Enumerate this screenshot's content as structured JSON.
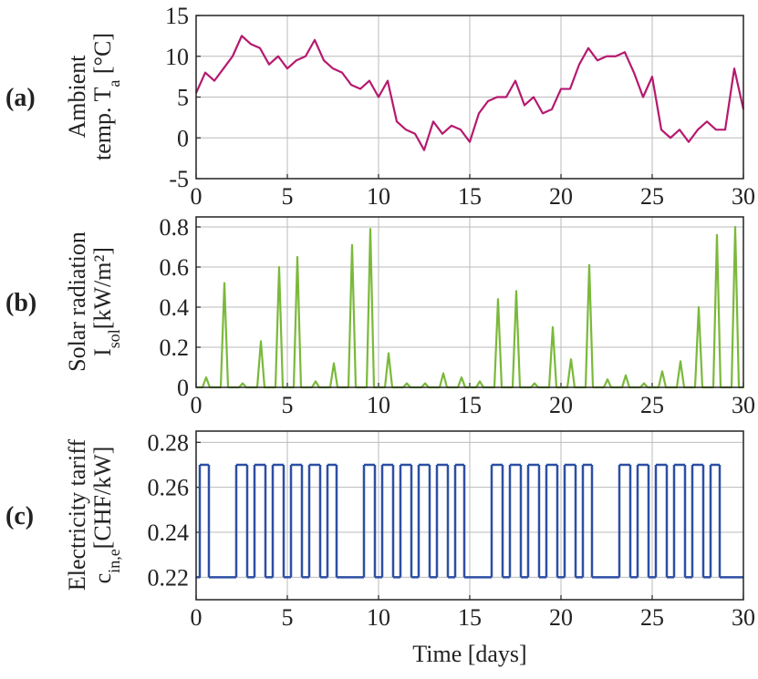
{
  "chart_data": [
    {
      "type": "line",
      "panel_label": "(a)",
      "ylabel": [
        [
          "Ambient"
        ],
        [
          "temp. T",
          "a",
          " [°C]"
        ]
      ],
      "x": [
        0,
        0.5,
        1,
        1.5,
        2,
        2.5,
        3,
        3.5,
        4,
        4.5,
        5,
        5.5,
        6,
        6.5,
        7,
        7.5,
        8,
        8.5,
        9,
        9.5,
        10,
        10.5,
        11,
        11.5,
        12,
        12.5,
        13,
        13.5,
        14,
        14.5,
        15,
        15.5,
        16,
        16.5,
        17,
        17.5,
        18,
        18.5,
        19,
        19.5,
        20,
        20.5,
        21,
        21.5,
        22,
        22.5,
        23,
        23.5,
        24,
        24.5,
        25,
        25.5,
        26,
        26.5,
        27,
        27.5,
        28,
        28.5,
        29,
        29.5,
        30
      ],
      "series": [
        {
          "color": "#b5196f",
          "values": [
            5.5,
            8,
            7,
            8.5,
            10,
            12.5,
            11.5,
            11,
            9,
            10,
            8.5,
            9.5,
            10,
            12,
            9.5,
            8.5,
            8,
            6.5,
            6,
            7,
            5,
            7,
            2,
            1,
            0.5,
            -1.5,
            2,
            0.5,
            1.5,
            1,
            -0.5,
            3,
            4.5,
            5,
            5,
            7,
            4,
            5,
            3,
            3.5,
            6,
            6,
            9,
            11,
            9.5,
            10,
            10,
            10.5,
            8,
            5,
            7.5,
            1,
            0,
            1,
            -0.5,
            1,
            2,
            1,
            1,
            8.5,
            3.5
          ]
        }
      ],
      "xlim": [
        0,
        30
      ],
      "xticks": [
        0,
        5,
        10,
        15,
        20,
        25,
        30
      ],
      "ylim": [
        -5,
        15
      ],
      "yticks": [
        -5,
        0,
        5,
        10,
        15
      ],
      "grid": true
    },
    {
      "type": "line",
      "panel_label": "(b)",
      "ylabel": [
        [
          "Solar radiation"
        ],
        [
          "I",
          "sol",
          "[kW/m²]"
        ]
      ],
      "x": [
        0,
        0.35,
        0.55,
        0.75,
        1.35,
        1.55,
        1.75,
        2.35,
        2.55,
        2.75,
        3.35,
        3.55,
        3.75,
        4.35,
        4.55,
        4.75,
        5.35,
        5.55,
        5.75,
        6.35,
        6.55,
        6.75,
        7.35,
        7.55,
        7.75,
        8.35,
        8.55,
        8.75,
        9.35,
        9.55,
        9.75,
        10.35,
        10.55,
        10.75,
        11.35,
        11.55,
        11.75,
        12.35,
        12.55,
        12.75,
        13.35,
        13.55,
        13.75,
        14.35,
        14.55,
        14.75,
        15.35,
        15.55,
        15.75,
        16.35,
        16.55,
        16.75,
        17.35,
        17.55,
        17.75,
        18.35,
        18.55,
        18.75,
        19.35,
        19.55,
        19.75,
        20.35,
        20.55,
        20.75,
        21.35,
        21.55,
        21.75,
        22.35,
        22.55,
        22.75,
        23.35,
        23.55,
        23.75,
        24.35,
        24.55,
        24.75,
        25.35,
        25.55,
        25.75,
        26.35,
        26.55,
        26.75,
        27.35,
        27.55,
        27.75,
        28.35,
        28.55,
        28.75,
        29.35,
        29.55,
        29.75,
        30
      ],
      "series": [
        {
          "color": "#7ab93a",
          "values": [
            0,
            0,
            0.05,
            0,
            0,
            0.52,
            0,
            0,
            0.02,
            0,
            0,
            0.23,
            0,
            0,
            0.6,
            0,
            0,
            0.65,
            0,
            0,
            0.03,
            0,
            0,
            0.12,
            0,
            0,
            0.71,
            0,
            0,
            0.79,
            0,
            0,
            0.17,
            0,
            0,
            0.02,
            0,
            0,
            0.02,
            0,
            0,
            0.07,
            0,
            0,
            0.05,
            0,
            0,
            0.03,
            0,
            0,
            0.44,
            0,
            0,
            0.48,
            0,
            0,
            0.02,
            0,
            0,
            0.3,
            0,
            0,
            0.14,
            0,
            0,
            0.61,
            0,
            0,
            0.04,
            0,
            0,
            0.06,
            0,
            0,
            0.02,
            0,
            0,
            0.08,
            0,
            0,
            0.13,
            0,
            0,
            0.4,
            0,
            0,
            0.76,
            0,
            0,
            0.8,
            0,
            0
          ]
        }
      ],
      "xlim": [
        0,
        30
      ],
      "xticks": [
        0,
        5,
        10,
        15,
        20,
        25,
        30
      ],
      "ylim": [
        0,
        0.85
      ],
      "yticks": [
        0,
        0.2,
        0.4,
        0.6,
        0.8
      ],
      "grid": true
    },
    {
      "type": "step",
      "panel_label": "(c)",
      "ylabel": [
        [
          "Electricity tariff"
        ],
        [
          "c",
          "in,e",
          "[CHF/kW]"
        ]
      ],
      "xlabel": "Time [days]",
      "x": [
        0,
        0.2,
        0.7,
        2.2,
        2.8,
        3.2,
        3.8,
        4.2,
        4.8,
        5.2,
        5.8,
        6.2,
        6.8,
        7.2,
        7.7,
        9.2,
        9.8,
        10.2,
        10.8,
        11.2,
        11.8,
        12.2,
        12.8,
        13.2,
        13.8,
        14.2,
        14.7,
        16.2,
        16.8,
        17.2,
        17.8,
        18.2,
        18.8,
        19.2,
        19.8,
        20.2,
        20.8,
        21.2,
        21.7,
        23.2,
        23.8,
        24.2,
        24.8,
        25.2,
        25.8,
        26.2,
        26.8,
        27.2,
        27.8,
        28.2,
        28.7
      ],
      "series": [
        {
          "color": "#2d4fa3",
          "values": [
            0.22,
            0.27,
            0.22,
            0.27,
            0.22,
            0.27,
            0.22,
            0.27,
            0.22,
            0.27,
            0.22,
            0.27,
            0.22,
            0.27,
            0.22,
            0.27,
            0.22,
            0.27,
            0.22,
            0.27,
            0.22,
            0.27,
            0.22,
            0.27,
            0.22,
            0.27,
            0.22,
            0.27,
            0.22,
            0.27,
            0.22,
            0.27,
            0.22,
            0.27,
            0.22,
            0.27,
            0.22,
            0.27,
            0.22,
            0.27,
            0.22,
            0.27,
            0.22,
            0.27,
            0.22,
            0.27,
            0.22,
            0.27,
            0.22,
            0.27,
            0.22
          ]
        }
      ],
      "xlim": [
        0,
        30
      ],
      "xticks": [
        0,
        5,
        10,
        15,
        20,
        25,
        30
      ],
      "ylim": [
        0.21,
        0.285
      ],
      "yticks": [
        0.22,
        0.24,
        0.26,
        0.28
      ],
      "grid": true
    }
  ]
}
